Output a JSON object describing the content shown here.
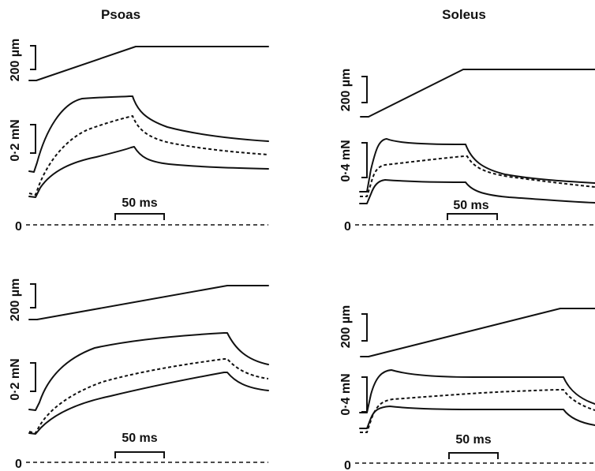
{
  "titles": {
    "left": "Psoas",
    "right": "Soleus"
  },
  "labels": {
    "length_scale": "200 µm",
    "force_psoas": "0·2 mN",
    "force_soleus": "0·4 mN",
    "time_scale": "50 ms",
    "zero": "0"
  },
  "chart_data": [
    {
      "type": "line",
      "title": "Psoas",
      "panel": "top-left",
      "traces": [
        "length ramp",
        "upper force trace",
        "mean force trace (dashed)",
        "lower force trace",
        "zero force baseline (dashed)"
      ],
      "scale_bars": {
        "length": "200 µm",
        "force": "0·2 mN",
        "time": "50 ms"
      }
    },
    {
      "type": "line",
      "title": "Soleus",
      "panel": "top-right",
      "traces": [
        "length ramp",
        "upper force trace",
        "mean force trace (dashed)",
        "lower force trace",
        "zero force baseline (dashed)"
      ],
      "scale_bars": {
        "length": "200 µm",
        "force": "0·4 mN",
        "time": "50 ms"
      }
    },
    {
      "type": "line",
      "title": "Psoas",
      "panel": "bottom-left",
      "traces": [
        "length ramp",
        "upper force trace",
        "mean force trace (dashed)",
        "lower force trace",
        "zero force baseline (dashed)"
      ],
      "scale_bars": {
        "length": "200 µm",
        "force": "0·2 mN",
        "time": "50 ms"
      }
    },
    {
      "type": "line",
      "title": "Soleus",
      "panel": "bottom-right",
      "traces": [
        "length ramp",
        "upper force trace",
        "mean force trace (dashed)",
        "lower force trace",
        "zero force baseline (dashed)"
      ],
      "scale_bars": {
        "length": "200 µm",
        "force": "0·4 mN",
        "time": "50 ms"
      }
    }
  ]
}
